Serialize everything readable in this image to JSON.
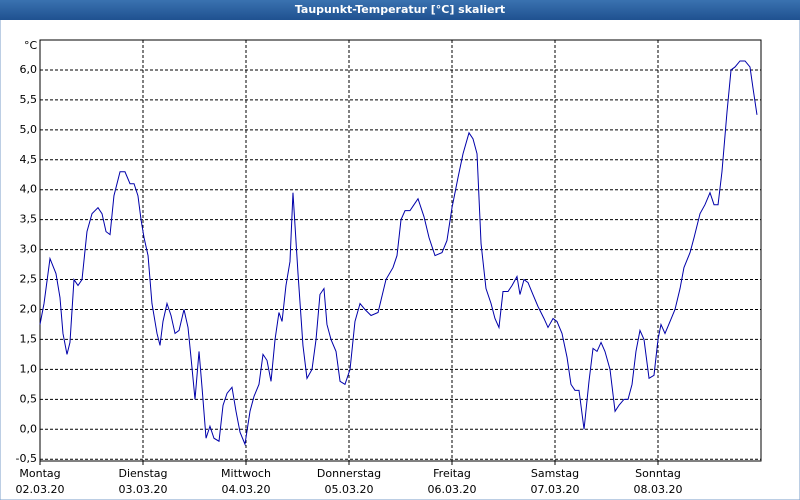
{
  "chart_data": {
    "type": "line",
    "title": "Taupunkt-Temperatur [°C] skaliert",
    "y_label": "°C",
    "color": "#0000aa",
    "grid": true,
    "xlim": [
      0,
      7
    ],
    "ylim": [
      -0.53,
      6.5
    ],
    "xticks": [
      {
        "value": 0,
        "label": "Montag",
        "date": "02.03.20"
      },
      {
        "value": 1,
        "label": "Dienstag",
        "date": "03.03.20"
      },
      {
        "value": 2,
        "label": "Mittwoch",
        "date": "04.03.20"
      },
      {
        "value": 3,
        "label": "Donnerstag",
        "date": "05.03.20"
      },
      {
        "value": 4,
        "label": "Freitag",
        "date": "06.03.20"
      },
      {
        "value": 5,
        "label": "Samstag",
        "date": "07.03.20"
      },
      {
        "value": 6,
        "label": "Sonntag",
        "date": "08.03.20"
      }
    ],
    "yticks": [
      {
        "value": -0.5,
        "label": "-0,5"
      },
      {
        "value": 0,
        "label": "0,0"
      },
      {
        "value": 0.5,
        "label": "0,5"
      },
      {
        "value": 1,
        "label": "1,0"
      },
      {
        "value": 1.5,
        "label": "1,5"
      },
      {
        "value": 2,
        "label": "2,0"
      },
      {
        "value": 2.5,
        "label": "2,5"
      },
      {
        "value": 3,
        "label": "3,0"
      },
      {
        "value": 3.5,
        "label": "3,5"
      },
      {
        "value": 4,
        "label": "4,0"
      },
      {
        "value": 4.5,
        "label": "4,5"
      },
      {
        "value": 5,
        "label": "5,0"
      },
      {
        "value": 5.5,
        "label": "5,5"
      },
      {
        "value": 6,
        "label": "6,0"
      }
    ],
    "x": [
      0,
      0.039,
      0.097,
      0.155,
      0.194,
      0.223,
      0.262,
      0.291,
      0.33,
      0.369,
      0.408,
      0.456,
      0.505,
      0.563,
      0.602,
      0.641,
      0.68,
      0.718,
      0.777,
      0.825,
      0.874,
      0.913,
      0.951,
      0.981,
      1.01,
      1.049,
      1.087,
      1.136,
      1.165,
      1.194,
      1.233,
      1.272,
      1.311,
      1.35,
      1.398,
      1.437,
      1.466,
      1.505,
      1.544,
      1.573,
      1.612,
      1.65,
      1.689,
      1.738,
      1.777,
      1.816,
      1.864,
      1.903,
      1.942,
      1.99,
      2.039,
      2.078,
      2.126,
      2.165,
      2.204,
      2.243,
      2.282,
      2.32,
      2.35,
      2.388,
      2.427,
      2.456,
      2.505,
      2.553,
      2.592,
      2.641,
      2.68,
      2.718,
      2.757,
      2.786,
      2.825,
      2.874,
      2.913,
      2.961,
      3.01,
      3.058,
      3.107,
      3.155,
      3.214,
      3.282,
      3.359,
      3.427,
      3.466,
      3.505,
      3.544,
      3.592,
      3.631,
      3.67,
      3.728,
      3.777,
      3.835,
      3.903,
      3.951,
      4,
      4.058,
      4.107,
      4.165,
      4.204,
      4.243,
      4.282,
      4.33,
      4.379,
      4.417,
      4.456,
      4.495,
      4.544,
      4.583,
      4.631,
      4.66,
      4.699,
      4.738,
      4.786,
      4.835,
      4.893,
      4.932,
      4.981,
      5.019,
      5.068,
      5.117,
      5.155,
      5.194,
      5.233,
      5.282,
      5.33,
      5.369,
      5.408,
      5.447,
      5.485,
      5.534,
      5.583,
      5.621,
      5.67,
      5.709,
      5.748,
      5.786,
      5.825,
      5.864,
      5.913,
      5.961,
      6,
      6.029,
      6.068,
      6.117,
      6.165,
      6.214,
      6.252,
      6.311,
      6.35,
      6.408,
      6.456,
      6.505,
      6.544,
      6.583,
      6.621,
      6.67,
      6.709,
      6.748,
      6.796,
      6.845,
      6.893,
      6.922,
      6.961
    ],
    "values": [
      1.75,
      2.1,
      2.85,
      2.6,
      2.2,
      1.6,
      1.25,
      1.45,
      2.5,
      2.4,
      2.5,
      3.3,
      3.6,
      3.7,
      3.6,
      3.3,
      3.25,
      3.9,
      4.3,
      4.3,
      4.1,
      4.1,
      3.9,
      3.5,
      3.2,
      2.9,
      2.1,
      1.6,
      1.4,
      1.8,
      2.1,
      1.9,
      1.6,
      1.65,
      2.0,
      1.7,
      1.2,
      0.5,
      1.3,
      0.7,
      -0.15,
      0.05,
      -0.15,
      -0.2,
      0.4,
      0.6,
      0.7,
      0.3,
      -0.05,
      -0.25,
      0.3,
      0.55,
      0.75,
      1.25,
      1.15,
      0.8,
      1.5,
      1.95,
      1.8,
      2.4,
      2.8,
      3.95,
      2.6,
      1.4,
      0.85,
      1.0,
      1.5,
      2.25,
      2.35,
      1.75,
      1.5,
      1.3,
      0.8,
      0.75,
      1.0,
      1.8,
      2.1,
      2.0,
      1.9,
      1.95,
      2.5,
      2.7,
      2.9,
      3.5,
      3.65,
      3.65,
      3.75,
      3.85,
      3.55,
      3.2,
      2.9,
      2.95,
      3.15,
      3.7,
      4.2,
      4.6,
      4.95,
      4.85,
      4.6,
      3.1,
      2.35,
      2.1,
      1.85,
      1.7,
      2.3,
      2.3,
      2.4,
      2.55,
      2.25,
      2.5,
      2.45,
      2.25,
      2.05,
      1.85,
      1.7,
      1.85,
      1.8,
      1.6,
      1.2,
      0.75,
      0.65,
      0.65,
      0.0,
      0.8,
      1.35,
      1.3,
      1.45,
      1.3,
      1.0,
      0.3,
      0.4,
      0.5,
      0.5,
      0.75,
      1.3,
      1.65,
      1.5,
      0.85,
      0.9,
      1.5,
      1.75,
      1.6,
      1.8,
      2.0,
      2.35,
      2.7,
      2.95,
      3.2,
      3.6,
      3.75,
      3.95,
      3.75,
      3.75,
      4.3,
      5.3,
      6.0,
      6.05,
      6.15,
      6.15,
      6.05,
      5.7,
      5.25
    ]
  }
}
